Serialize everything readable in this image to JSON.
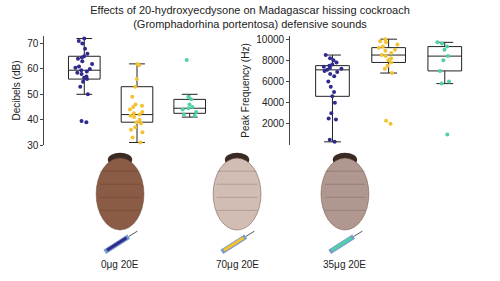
{
  "title": "Effects of 20-hydroxyecdysone on Madagascar hissing cockroach\n(Gromphadorhina portentosa) defensive sounds",
  "chart_data": [
    {
      "type": "box",
      "y_label": "Decibels (dB)",
      "categories": [
        "0μg 20E",
        "70μg 20E",
        "35μg 20E"
      ],
      "colors": [
        "#2f2a8c",
        "#f2c230",
        "#4fd1a5"
      ],
      "values": [
        [
          72,
          71,
          70,
          68,
          66,
          65,
          64.5,
          64,
          63,
          62,
          61,
          60.5,
          60,
          59.5,
          59,
          58.5,
          58,
          57,
          56.5,
          56,
          55,
          53,
          50,
          39.5,
          39
        ],
        [
          62,
          61.5,
          56,
          53,
          49,
          46,
          45.5,
          45,
          44,
          43,
          42.5,
          42,
          41.5,
          41,
          40,
          39,
          38.5,
          37,
          36,
          35,
          33,
          31
        ],
        [
          63.5,
          49,
          48,
          46,
          45,
          44.5,
          44,
          43,
          42,
          41.5
        ]
      ],
      "box_stats": {
        "q1": [
          56,
          39,
          42.5
        ],
        "median": [
          59.5,
          42,
          44.5
        ],
        "q3": [
          65,
          53,
          48
        ],
        "lower": [
          50,
          31,
          41
        ],
        "upper": [
          72,
          62,
          50
        ]
      },
      "ylim": [
        30,
        73
      ],
      "yticks": [
        30,
        40,
        50,
        60,
        70
      ],
      "tick_labels": "y",
      "grid": false
    },
    {
      "type": "box",
      "y_label": "Peak Frequency (Hz)",
      "categories": [
        "0μg 20E",
        "70μg 20E",
        "35μg 20E"
      ],
      "colors": [
        "#2f2a8c",
        "#f2c230",
        "#4fd1a5"
      ],
      "values": [
        [
          8500,
          8200,
          8000,
          7800,
          7600,
          7500,
          7400,
          7300,
          7200,
          7100,
          7000,
          6900,
          6700,
          6500,
          6000,
          5500,
          5000,
          4600,
          4000,
          3000,
          2500,
          2400,
          500,
          300
        ],
        [
          10000,
          9800,
          9700,
          9500,
          9300,
          9200,
          9000,
          8900,
          8700,
          8500,
          8400,
          8200,
          8000,
          7800,
          7500,
          7200,
          6800,
          2300,
          2000
        ],
        [
          9700,
          9600,
          9300,
          9000,
          8400,
          8000,
          7000,
          6000,
          5800,
          1000
        ]
      ],
      "box_stats": {
        "q1": [
          4600,
          7800,
          7000
        ],
        "median": [
          7100,
          8500,
          8400
        ],
        "q3": [
          7500,
          9200,
          9300
        ],
        "lower": [
          300,
          6800,
          5800
        ],
        "upper": [
          8500,
          10000,
          9700
        ]
      },
      "ylim": [
        0,
        10300
      ],
      "yticks": [
        2000,
        4000,
        6000,
        8000,
        10000
      ],
      "tick_labels": "y",
      "grid": false
    }
  ]
}
